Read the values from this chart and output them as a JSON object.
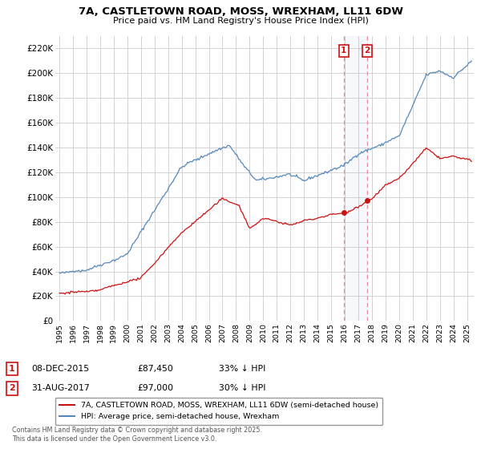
{
  "title": "7A, CASTLETOWN ROAD, MOSS, WREXHAM, LL11 6DW",
  "subtitle": "Price paid vs. HM Land Registry's House Price Index (HPI)",
  "ylabel_ticks": [
    "£0",
    "£20K",
    "£40K",
    "£60K",
    "£80K",
    "£100K",
    "£120K",
    "£140K",
    "£160K",
    "£180K",
    "£200K",
    "£220K"
  ],
  "ytick_values": [
    0,
    20000,
    40000,
    60000,
    80000,
    100000,
    120000,
    140000,
    160000,
    180000,
    200000,
    220000
  ],
  "ylim": [
    0,
    230000
  ],
  "xlim_year": [
    1994.7,
    2025.5
  ],
  "hpi_color": "#5588bb",
  "price_color": "#cc1111",
  "bg_color": "#ffffff",
  "grid_color": "#cccccc",
  "transaction1_date": 2015.93,
  "transaction1_price": 87450,
  "transaction2_date": 2017.66,
  "transaction2_price": 97000,
  "legend_label_price": "7A, CASTLETOWN ROAD, MOSS, WREXHAM, LL11 6DW (semi-detached house)",
  "legend_label_hpi": "HPI: Average price, semi-detached house, Wrexham",
  "annotation1_date": "08-DEC-2015",
  "annotation1_price": "£87,450",
  "annotation1_hpi": "33% ↓ HPI",
  "annotation2_date": "31-AUG-2017",
  "annotation2_price": "£97,000",
  "annotation2_hpi": "30% ↓ HPI",
  "footnote": "Contains HM Land Registry data © Crown copyright and database right 2025.\nThis data is licensed under the Open Government Licence v3.0."
}
